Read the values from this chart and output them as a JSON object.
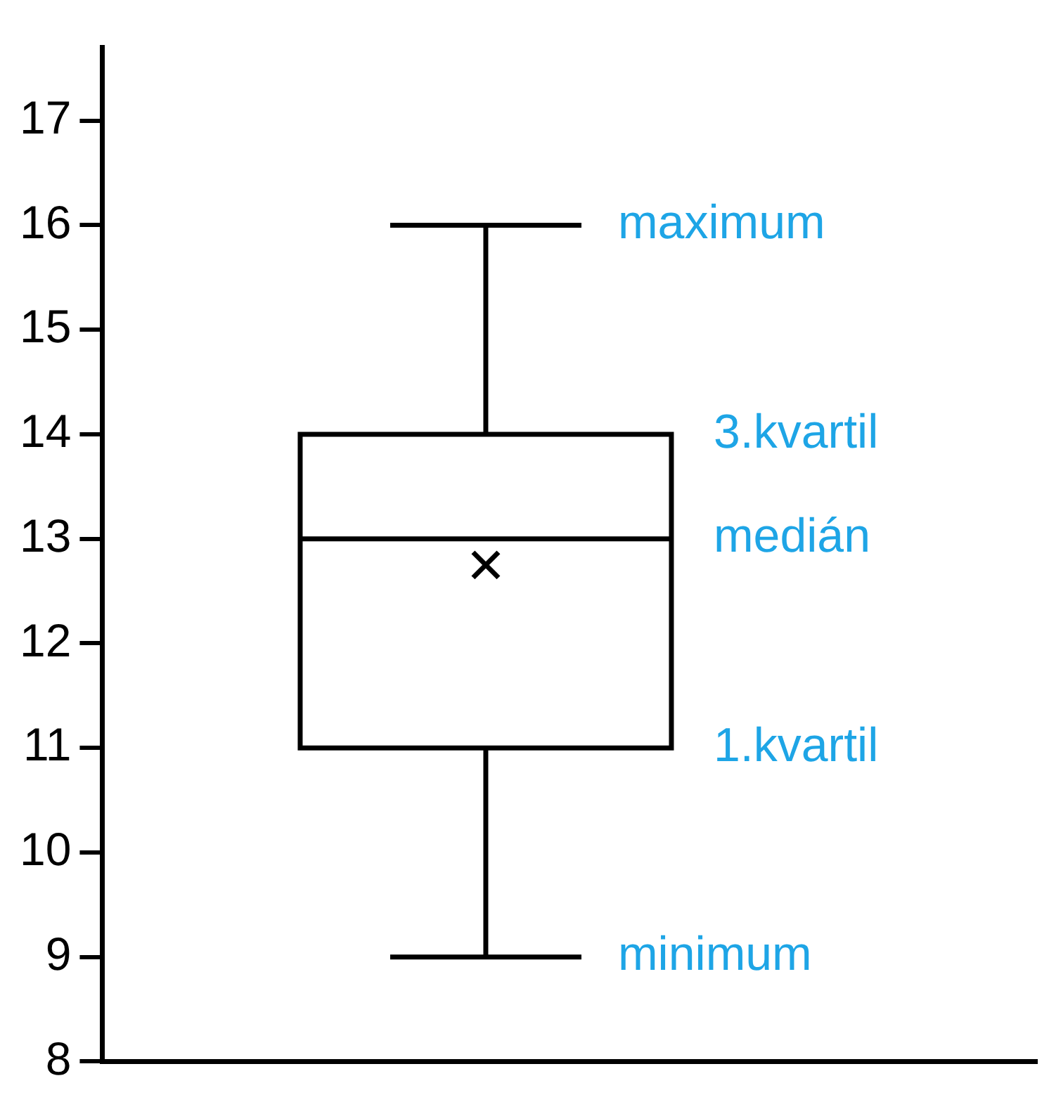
{
  "chart_data": {
    "type": "box",
    "categories": [
      null
    ],
    "color": "#000000",
    "boxes": [
      {
        "low": 9,
        "q1": 11,
        "median": 13,
        "q3": 14,
        "high": 16,
        "mean": 12.75
      }
    ],
    "ylim": [
      8,
      17.7
    ],
    "yticks": [
      8,
      9,
      10,
      11,
      12,
      13,
      14,
      15,
      16,
      17
    ],
    "grid": false,
    "legend": false,
    "annotations": [
      "maximum",
      "3.kvartil",
      "medián",
      "1.kvartil",
      "minimum"
    ]
  }
}
